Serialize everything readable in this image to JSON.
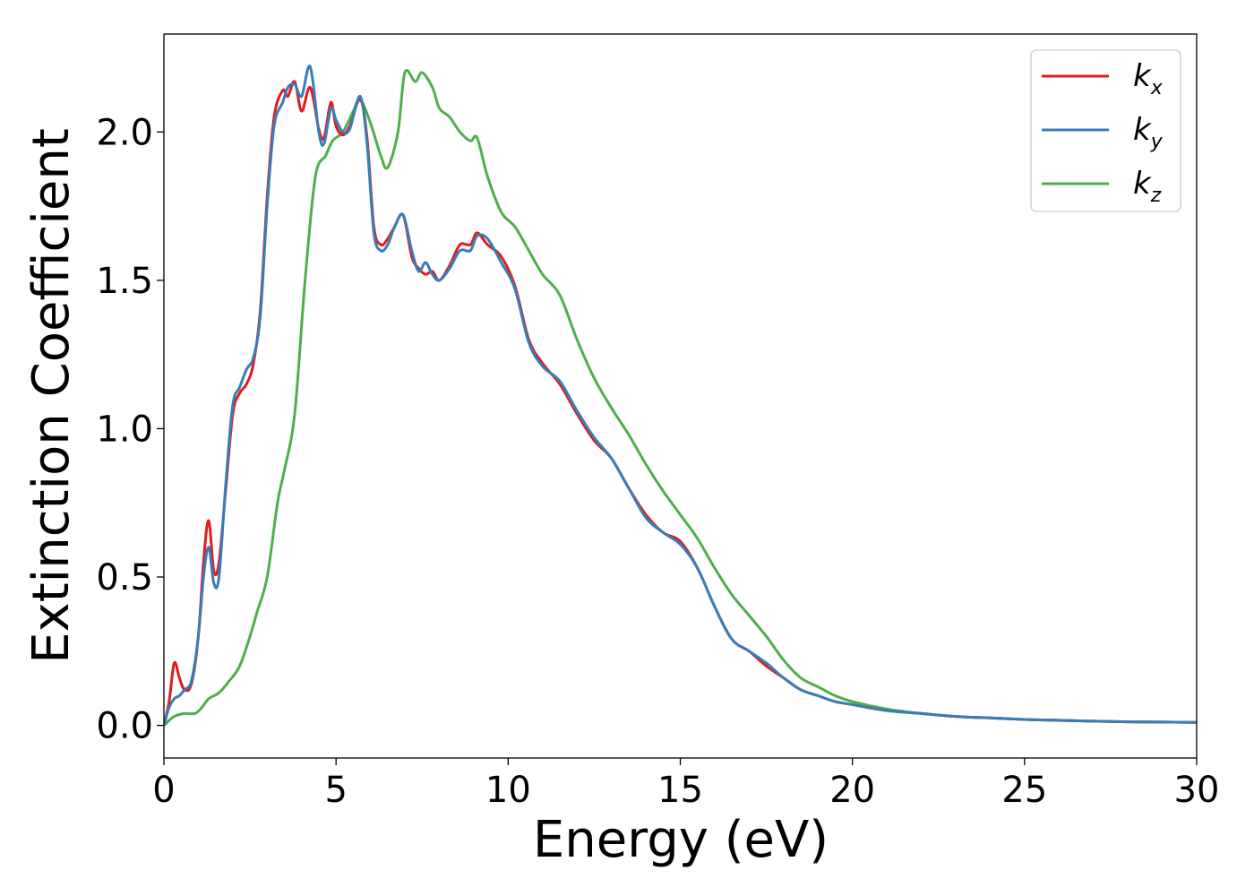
{
  "chart_data": {
    "type": "line",
    "title": "",
    "xlabel": "Energy (eV)",
    "ylabel": "Extinction Coefficient",
    "xlim": [
      0,
      30
    ],
    "ylim": [
      -0.11,
      2.33
    ],
    "xticks": [
      0,
      5,
      10,
      15,
      20,
      25,
      30
    ],
    "xtick_labels": [
      "0",
      "5",
      "10",
      "15",
      "20",
      "25",
      "30"
    ],
    "yticks": [
      0.0,
      0.5,
      1.0,
      1.5,
      2.0
    ],
    "ytick_labels": [
      "0.0",
      "0.5",
      "1.0",
      "1.5",
      "2.0"
    ],
    "grid": false,
    "legend_position": "top-right",
    "series": [
      {
        "name": "k_x",
        "label_main": "k",
        "label_sub": "x",
        "color": "#e41a1c",
        "x": [
          0,
          0.15,
          0.3,
          0.45,
          0.6,
          0.8,
          1.0,
          1.15,
          1.3,
          1.45,
          1.6,
          1.8,
          2.0,
          2.2,
          2.4,
          2.6,
          2.8,
          3.0,
          3.2,
          3.45,
          3.6,
          3.8,
          4.0,
          4.25,
          4.5,
          4.65,
          4.85,
          5.0,
          5.2,
          5.4,
          5.7,
          5.9,
          6.1,
          6.3,
          6.5,
          6.7,
          6.95,
          7.2,
          7.4,
          7.6,
          7.8,
          8.0,
          8.3,
          8.6,
          8.9,
          9.1,
          9.4,
          9.8,
          10.2,
          10.6,
          11.0,
          11.5,
          12.0,
          12.5,
          13.0,
          13.5,
          14.0,
          14.5,
          15.0,
          15.5,
          16.0,
          16.5,
          17.0,
          17.5,
          18.0,
          18.5,
          19.0,
          19.5,
          20.0,
          21.0,
          22.0,
          23.0,
          24.0,
          25.0,
          26.0,
          27.0,
          28.0,
          29.0,
          30.0
        ],
        "y": [
          0.0,
          0.08,
          0.21,
          0.16,
          0.12,
          0.14,
          0.3,
          0.55,
          0.69,
          0.52,
          0.55,
          0.8,
          1.05,
          1.12,
          1.15,
          1.22,
          1.4,
          1.78,
          2.05,
          2.14,
          2.12,
          2.17,
          2.07,
          2.15,
          2.01,
          1.98,
          2.1,
          2.02,
          1.99,
          2.02,
          2.11,
          1.98,
          1.68,
          1.62,
          1.64,
          1.68,
          1.72,
          1.58,
          1.54,
          1.52,
          1.53,
          1.5,
          1.55,
          1.62,
          1.62,
          1.66,
          1.62,
          1.58,
          1.48,
          1.3,
          1.22,
          1.15,
          1.05,
          0.96,
          0.9,
          0.8,
          0.71,
          0.65,
          0.62,
          0.53,
          0.4,
          0.29,
          0.25,
          0.2,
          0.16,
          0.12,
          0.1,
          0.08,
          0.07,
          0.05,
          0.04,
          0.03,
          0.025,
          0.02,
          0.017,
          0.014,
          0.012,
          0.011,
          0.01
        ]
      },
      {
        "name": "k_y",
        "label_main": "k",
        "label_sub": "y",
        "color": "#377eb8",
        "x": [
          0,
          0.15,
          0.3,
          0.45,
          0.6,
          0.8,
          1.0,
          1.15,
          1.3,
          1.45,
          1.6,
          1.8,
          2.0,
          2.2,
          2.4,
          2.6,
          2.8,
          3.0,
          3.2,
          3.45,
          3.6,
          3.8,
          4.0,
          4.25,
          4.5,
          4.65,
          4.85,
          5.0,
          5.2,
          5.4,
          5.7,
          5.9,
          6.1,
          6.3,
          6.5,
          6.7,
          6.95,
          7.2,
          7.4,
          7.6,
          7.8,
          8.0,
          8.3,
          8.6,
          8.9,
          9.1,
          9.4,
          9.8,
          10.2,
          10.6,
          11.0,
          11.5,
          12.0,
          12.5,
          13.0,
          13.5,
          14.0,
          14.5,
          15.0,
          15.5,
          16.0,
          16.5,
          17.0,
          17.5,
          18.0,
          18.5,
          19.0,
          19.5,
          20.0,
          21.0,
          22.0,
          23.0,
          24.0,
          25.0,
          26.0,
          27.0,
          28.0,
          29.0,
          30.0
        ],
        "y": [
          0.0,
          0.06,
          0.09,
          0.1,
          0.12,
          0.15,
          0.3,
          0.5,
          0.6,
          0.48,
          0.5,
          0.82,
          1.08,
          1.14,
          1.2,
          1.24,
          1.38,
          1.75,
          2.02,
          2.1,
          2.15,
          2.16,
          2.12,
          2.22,
          2.0,
          1.96,
          2.08,
          2.04,
          2.0,
          2.01,
          2.12,
          1.96,
          1.66,
          1.6,
          1.62,
          1.68,
          1.72,
          1.6,
          1.53,
          1.56,
          1.52,
          1.5,
          1.54,
          1.6,
          1.6,
          1.65,
          1.64,
          1.56,
          1.47,
          1.29,
          1.21,
          1.16,
          1.06,
          0.97,
          0.9,
          0.8,
          0.7,
          0.65,
          0.61,
          0.53,
          0.4,
          0.29,
          0.25,
          0.21,
          0.16,
          0.12,
          0.1,
          0.08,
          0.07,
          0.05,
          0.04,
          0.03,
          0.025,
          0.02,
          0.017,
          0.014,
          0.012,
          0.011,
          0.01
        ]
      },
      {
        "name": "k_z",
        "label_main": "k",
        "label_sub": "z",
        "color": "#4daf4a",
        "x": [
          0,
          0.3,
          0.6,
          0.9,
          1.1,
          1.3,
          1.6,
          1.9,
          2.2,
          2.5,
          2.7,
          3.0,
          3.3,
          3.5,
          3.8,
          4.1,
          4.4,
          4.7,
          4.9,
          5.2,
          5.5,
          5.7,
          6.0,
          6.3,
          6.5,
          6.8,
          7.0,
          7.3,
          7.5,
          7.8,
          8.0,
          8.3,
          8.6,
          8.9,
          9.1,
          9.4,
          9.8,
          10.2,
          10.6,
          11.0,
          11.5,
          12.0,
          12.5,
          13.0,
          13.5,
          14.0,
          14.5,
          15.0,
          15.5,
          16.0,
          16.5,
          17.0,
          17.5,
          18.0,
          18.5,
          19.0,
          19.5,
          20.0,
          21.0,
          22.0,
          23.0,
          24.0,
          25.0,
          26.0,
          27.0,
          28.0,
          29.0,
          30.0
        ],
        "y": [
          0.0,
          0.03,
          0.04,
          0.04,
          0.06,
          0.09,
          0.11,
          0.15,
          0.2,
          0.3,
          0.38,
          0.5,
          0.75,
          0.86,
          1.05,
          1.5,
          1.85,
          1.92,
          1.97,
          2.0,
          2.07,
          2.11,
          2.03,
          1.92,
          1.88,
          2.0,
          2.2,
          2.17,
          2.2,
          2.15,
          2.08,
          2.05,
          2.0,
          1.97,
          1.98,
          1.85,
          1.73,
          1.68,
          1.6,
          1.52,
          1.45,
          1.3,
          1.17,
          1.07,
          0.98,
          0.88,
          0.79,
          0.71,
          0.63,
          0.53,
          0.44,
          0.37,
          0.3,
          0.22,
          0.16,
          0.13,
          0.1,
          0.08,
          0.055,
          0.04,
          0.03,
          0.025,
          0.02,
          0.017,
          0.014,
          0.012,
          0.011,
          0.01
        ]
      }
    ]
  }
}
